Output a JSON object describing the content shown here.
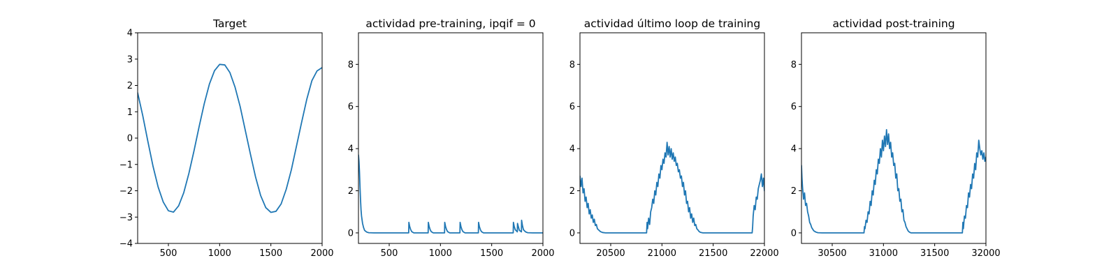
{
  "figure": {
    "background": "#ffffff",
    "line_color": "#1f77b4"
  },
  "chart_data": [
    {
      "type": "line",
      "title": "Target",
      "xlabel": "",
      "ylabel": "",
      "xlim": [
        200,
        2000
      ],
      "ylim": [
        -4,
        4
      ],
      "xticks": [
        500,
        1000,
        1500,
        2000
      ],
      "yticks": [
        -4,
        -3,
        -2,
        -1,
        0,
        1,
        2,
        3,
        4
      ],
      "xtick_labels": [
        "500",
        "1000",
        "1500",
        "2000"
      ],
      "ytick_labels": [
        "−4",
        "−3",
        "−2",
        "−1",
        "0",
        "1",
        "2",
        "3",
        "4"
      ],
      "grid": false,
      "series": [
        {
          "x": [
            200,
            250,
            300,
            350,
            400,
            450,
            500,
            550,
            600,
            650,
            700,
            750,
            800,
            850,
            900,
            950,
            1000,
            1050,
            1100,
            1150,
            1200,
            1250,
            1300,
            1350,
            1400,
            1450,
            1500,
            1550,
            1600,
            1650,
            1700,
            1750,
            1800,
            1850,
            1900,
            1950,
            2000
          ],
          "y": [
            1.72,
            0.85,
            -0.13,
            -1.07,
            -1.86,
            -2.43,
            -2.76,
            -2.81,
            -2.57,
            -2.07,
            -1.34,
            -0.48,
            0.44,
            1.31,
            2.05,
            2.56,
            2.8,
            2.78,
            2.49,
            1.94,
            1.2,
            0.3,
            -0.6,
            -1.47,
            -2.18,
            -2.64,
            -2.82,
            -2.78,
            -2.5,
            -1.94,
            -1.2,
            -0.3,
            0.6,
            1.47,
            2.18,
            2.55,
            2.68
          ]
        }
      ]
    },
    {
      "type": "line",
      "title": "actividad pre-training, ipqif = 0",
      "xlabel": "",
      "ylabel": "",
      "xlim": [
        200,
        2000
      ],
      "ylim": [
        -0.5,
        9.5
      ],
      "xticks": [
        500,
        1000,
        1500,
        2000
      ],
      "yticks": [
        0,
        2,
        4,
        6,
        8
      ],
      "xtick_labels": [
        "500",
        "1000",
        "1500",
        "2000"
      ],
      "ytick_labels": [
        "0",
        "2",
        "4",
        "6",
        "8"
      ],
      "grid": false,
      "series": [
        {
          "x": [
            200,
            205,
            210,
            215,
            220,
            225,
            230,
            240,
            250,
            260,
            280,
            300,
            350,
            400,
            500,
            600,
            690,
            692,
            700,
            710,
            720,
            740,
            880,
            882,
            890,
            900,
            910,
            930,
            1040,
            1042,
            1050,
            1060,
            1070,
            1090,
            1190,
            1192,
            1200,
            1210,
            1220,
            1240,
            1370,
            1372,
            1380,
            1390,
            1400,
            1420,
            1710,
            1712,
            1720,
            1730,
            1750,
            1752,
            1760,
            1770,
            1790,
            1792,
            1800,
            1810,
            1830,
            1850,
            1900,
            2000
          ],
          "y": [
            3.7,
            3.4,
            2.9,
            2.2,
            1.6,
            1.1,
            0.8,
            0.45,
            0.25,
            0.12,
            0.04,
            0.01,
            0,
            0,
            0,
            0,
            0,
            0.5,
            0.3,
            0.15,
            0.06,
            0,
            0,
            0.5,
            0.3,
            0.15,
            0.06,
            0,
            0,
            0.5,
            0.3,
            0.15,
            0.06,
            0,
            0,
            0.5,
            0.3,
            0.15,
            0.06,
            0,
            0,
            0.5,
            0.3,
            0.15,
            0.06,
            0,
            0,
            0.5,
            0.3,
            0.15,
            0.05,
            0.45,
            0.3,
            0.12,
            0.05,
            0.6,
            0.35,
            0.15,
            0.05,
            0.01,
            0,
            0
          ]
        }
      ]
    },
    {
      "type": "line",
      "title": "actividad último loop de training",
      "xlabel": "",
      "ylabel": "",
      "xlim": [
        20200,
        22000
      ],
      "ylim": [
        -0.5,
        9.5
      ],
      "xticks": [
        20500,
        21000,
        21500,
        22000
      ],
      "yticks": [
        0,
        2,
        4,
        6,
        8
      ],
      "xtick_labels": [
        "20500",
        "21000",
        "21500",
        "22000"
      ],
      "ytick_labels": [
        "0",
        "2",
        "4",
        "6",
        "8"
      ],
      "grid": false,
      "series": [
        {
          "x": [
            20200,
            20210,
            20220,
            20230,
            20240,
            20250,
            20260,
            20270,
            20280,
            20290,
            20300,
            20310,
            20320,
            20330,
            20340,
            20350,
            20360,
            20370,
            20380,
            20400,
            20420,
            20450,
            20500,
            20600,
            20700,
            20800,
            20850,
            20855,
            20860,
            20870,
            20880,
            20890,
            20900,
            20910,
            20920,
            20930,
            20940,
            20950,
            20960,
            20970,
            20980,
            20990,
            21000,
            21010,
            21020,
            21030,
            21040,
            21050,
            21060,
            21070,
            21080,
            21090,
            21100,
            21110,
            21120,
            21130,
            21140,
            21150,
            21160,
            21170,
            21180,
            21190,
            21200,
            21210,
            21220,
            21230,
            21240,
            21250,
            21260,
            21270,
            21280,
            21290,
            21300,
            21310,
            21320,
            21330,
            21340,
            21350,
            21360,
            21370,
            21380,
            21400,
            21420,
            21450,
            21500,
            21600,
            21700,
            21800,
            21880,
            21885,
            21890,
            21900,
            21910,
            21920,
            21930,
            21940,
            21950,
            21960,
            21970,
            21980,
            21990,
            22000
          ],
          "y": [
            2.7,
            2.2,
            2.6,
            1.9,
            2.1,
            1.5,
            1.7,
            1.2,
            1.4,
            0.9,
            1.1,
            0.7,
            0.85,
            0.5,
            0.65,
            0.35,
            0.4,
            0.2,
            0.15,
            0.06,
            0.02,
            0,
            0,
            0,
            0,
            0,
            0,
            0.5,
            0.2,
            0.7,
            0.4,
            1.0,
            1.2,
            1.6,
            1.4,
            2.0,
            1.8,
            2.4,
            2.2,
            2.8,
            2.6,
            3.2,
            3.0,
            3.5,
            3.3,
            3.8,
            3.6,
            4.3,
            3.7,
            4.1,
            3.6,
            4.0,
            3.5,
            3.8,
            3.4,
            3.6,
            3.2,
            3.3,
            2.9,
            3.0,
            2.6,
            2.7,
            2.2,
            2.4,
            1.8,
            2.0,
            1.4,
            1.5,
            1.0,
            1.2,
            0.7,
            0.9,
            0.5,
            0.7,
            0.35,
            0.4,
            0.2,
            0.15,
            0.08,
            0.04,
            0.02,
            0,
            0,
            0,
            0,
            0,
            0,
            0,
            0,
            0.3,
            0.8,
            1.3,
            1.1,
            1.7,
            1.6,
            2.1,
            2.3,
            2.5,
            2.8,
            2.2,
            2.6,
            2.0
          ]
        }
      ]
    },
    {
      "type": "line",
      "title": "actividad post-training",
      "xlabel": "",
      "ylabel": "",
      "xlim": [
        30200,
        32000
      ],
      "ylim": [
        -0.5,
        9.5
      ],
      "xticks": [
        30500,
        31000,
        31500,
        32000
      ],
      "yticks": [
        0,
        2,
        4,
        6,
        8
      ],
      "xtick_labels": [
        "30500",
        "31000",
        "31500",
        "32000"
      ],
      "ytick_labels": [
        "0",
        "2",
        "4",
        "6",
        "8"
      ],
      "grid": false,
      "series": [
        {
          "x": [
            30200,
            30205,
            30210,
            30220,
            30230,
            30240,
            30250,
            30260,
            30270,
            30280,
            30290,
            30300,
            30320,
            30340,
            30360,
            30400,
            30500,
            30600,
            30700,
            30800,
            30810,
            30815,
            30820,
            30830,
            30840,
            30850,
            30860,
            30870,
            30880,
            30890,
            30900,
            30910,
            30920,
            30930,
            30940,
            30950,
            30960,
            30970,
            30980,
            30990,
            31000,
            31010,
            31020,
            31030,
            31040,
            31050,
            31060,
            31070,
            31080,
            31090,
            31100,
            31110,
            31120,
            31130,
            31140,
            31150,
            31160,
            31170,
            31180,
            31190,
            31200,
            31210,
            31220,
            31230,
            31240,
            31250,
            31260,
            31270,
            31280,
            31290,
            31300,
            31320,
            31340,
            31360,
            31400,
            31500,
            31600,
            31700,
            31770,
            31775,
            31780,
            31790,
            31800,
            31810,
            31820,
            31830,
            31840,
            31850,
            31860,
            31870,
            31880,
            31890,
            31900,
            31910,
            31920,
            31930,
            31940,
            31950,
            31960,
            31970,
            31980,
            31990,
            32000
          ],
          "y": [
            3.2,
            2.6,
            2.2,
            1.6,
            1.9,
            1.3,
            1.4,
            1.0,
            0.8,
            0.5,
            0.4,
            0.25,
            0.1,
            0.04,
            0.01,
            0,
            0,
            0,
            0,
            0,
            0,
            0.3,
            0.2,
            0.6,
            0.5,
            1.0,
            0.9,
            1.5,
            1.3,
            2.0,
            1.8,
            2.5,
            2.3,
            3.0,
            2.8,
            3.5,
            3.3,
            4.0,
            3.6,
            4.4,
            3.9,
            4.6,
            4.1,
            4.9,
            4.2,
            4.7,
            4.0,
            4.3,
            3.6,
            3.8,
            3.2,
            3.3,
            2.6,
            2.8,
            2.0,
            2.1,
            1.5,
            1.6,
            1.0,
            1.1,
            0.6,
            0.5,
            0.3,
            0.2,
            0.1,
            0.05,
            0.02,
            0,
            0,
            0,
            0,
            0,
            0,
            0,
            0,
            0,
            0,
            0,
            0,
            0.5,
            0.2,
            0.8,
            0.7,
            1.3,
            1.2,
            1.9,
            1.7,
            2.3,
            2.1,
            2.8,
            2.6,
            3.3,
            3.0,
            3.8,
            3.6,
            4.4,
            4.0,
            3.7,
            3.9,
            3.5,
            3.8,
            3.4,
            3.6
          ]
        }
      ]
    }
  ]
}
